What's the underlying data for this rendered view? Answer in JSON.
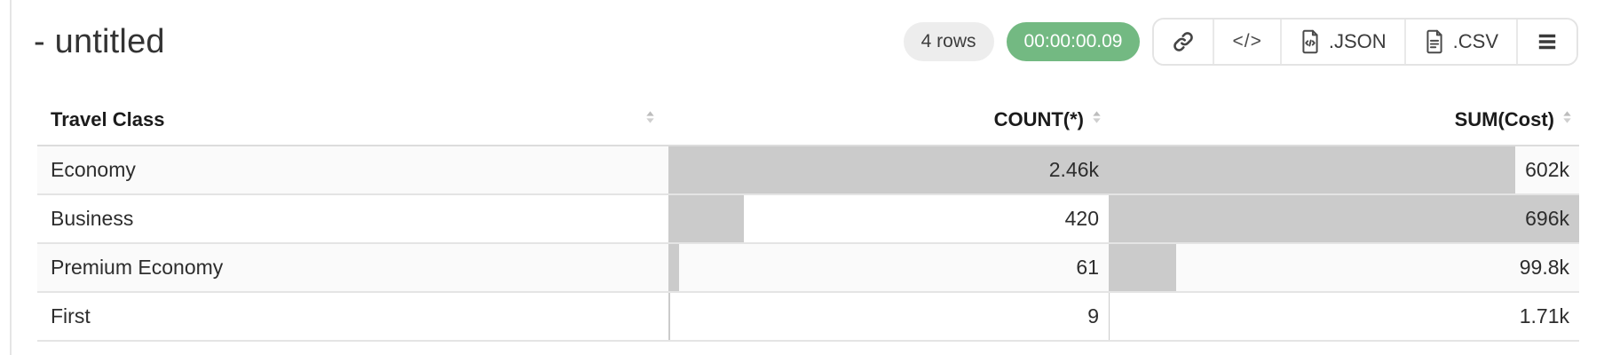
{
  "page": {
    "title": "- untitled"
  },
  "toolbar": {
    "rows_badge": "4 rows",
    "timer_badge": "00:00:00.09",
    "code_button_label": "</>",
    "json_button_label": ".JSON",
    "csv_button_label": ".CSV"
  },
  "colors": {
    "timer_badge_bg": "#73b982",
    "rows_badge_bg": "#ededed",
    "bar_fill": "#cbcbcb",
    "zebra_row_bg": "#fafafa"
  },
  "table": {
    "columns": [
      {
        "label": "Travel Class",
        "align": "left"
      },
      {
        "label": "COUNT(*)",
        "align": "right"
      },
      {
        "label": "SUM(Cost)",
        "align": "right"
      }
    ],
    "rows": [
      {
        "travel_class": "Economy",
        "count": "2.46k",
        "count_bar_pct": 100,
        "sum": "602k",
        "sum_bar_pct": 86.5
      },
      {
        "travel_class": "Business",
        "count": "420",
        "count_bar_pct": 17.1,
        "sum": "696k",
        "sum_bar_pct": 100
      },
      {
        "travel_class": "Premium Economy",
        "count": "61",
        "count_bar_pct": 2.5,
        "sum": "99.8k",
        "sum_bar_pct": 14.3
      },
      {
        "travel_class": "First",
        "count": "9",
        "count_bar_pct": 0.4,
        "sum": "1.71k",
        "sum_bar_pct": 0.25
      }
    ]
  },
  "chart_data": {
    "type": "table",
    "columns": [
      "Travel Class",
      "COUNT(*)",
      "SUM(Cost)"
    ],
    "rows": [
      [
        "Economy",
        "2.46k",
        "602k"
      ],
      [
        "Business",
        "420",
        "696k"
      ],
      [
        "Premium Economy",
        "61",
        "99.8k"
      ],
      [
        "First",
        "9",
        "1.71k"
      ]
    ]
  }
}
